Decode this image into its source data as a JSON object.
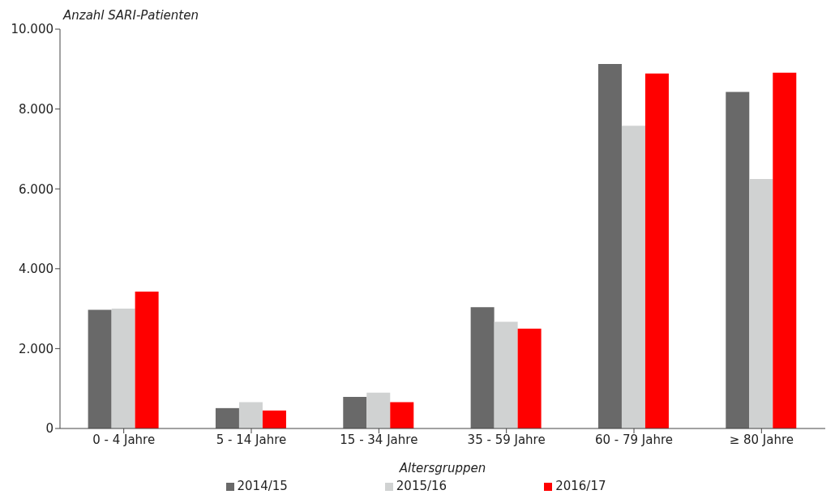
{
  "chart_data": {
    "type": "bar",
    "ylabel": "Anzahl SARI-Patienten",
    "xlabel": "Altersgruppen",
    "categories": [
      "0 - 4 Jahre",
      "5 - 14 Jahre",
      "15 - 34 Jahre",
      "35 - 59 Jahre",
      "60 - 79 Jahre",
      "≥ 80 Jahre"
    ],
    "series": [
      {
        "name": "2014/15",
        "color": "#696969",
        "values": [
          2970,
          510,
          790,
          3040,
          9130,
          8430
        ]
      },
      {
        "name": "2015/16",
        "color": "#d0d2d2",
        "values": [
          3000,
          660,
          900,
          2670,
          7580,
          6250
        ]
      },
      {
        "name": "2016/17",
        "color": "#ff0000",
        "values": [
          3430,
          450,
          660,
          2500,
          8890,
          8910
        ]
      }
    ],
    "ylim": [
      0,
      10000
    ],
    "yticks": [
      0,
      {
        "value": 2000,
        "label": "2.000"
      },
      {
        "value": 4000,
        "label": "4.000"
      },
      {
        "value": 6000,
        "label": "6.000"
      },
      {
        "value": 8000,
        "label": "8.000"
      },
      {
        "value": 10000,
        "label": "10.000"
      }
    ],
    "grid": false,
    "legend": "bottom"
  }
}
